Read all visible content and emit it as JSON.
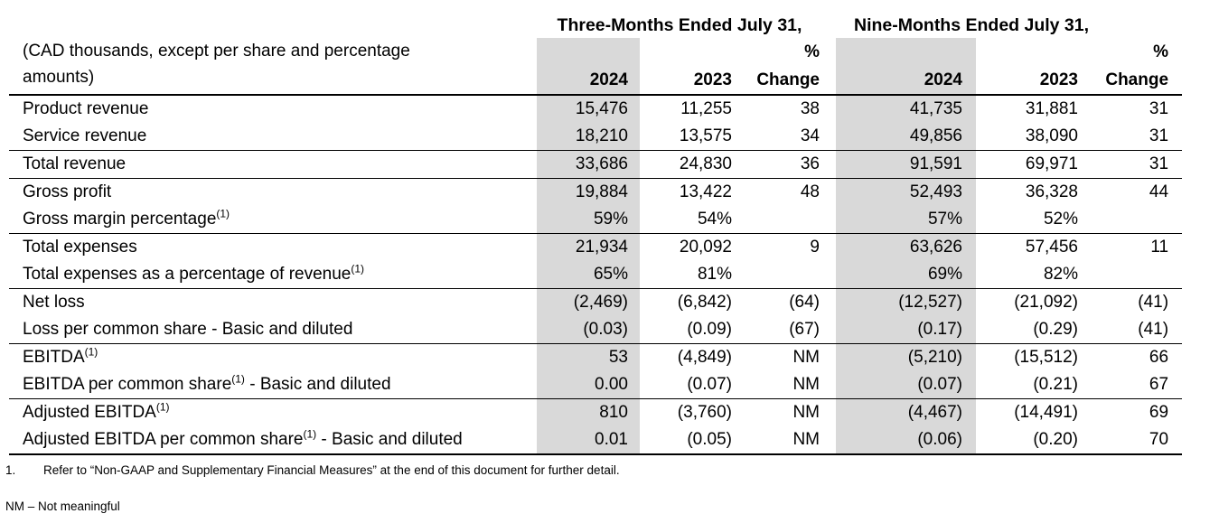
{
  "table": {
    "shade_color": "#d9d9d9",
    "group_headers": [
      "Three-Months Ended July 31,",
      "Nine-Months Ended July 31,"
    ],
    "caption_line1": "(CAD thousands, except per share and percentage",
    "caption_line2": "amounts)",
    "pct_label": "%",
    "col_headers": [
      "2024",
      "2023",
      "Change"
    ],
    "rows": [
      {
        "label": "Product revenue",
        "sup": "",
        "suffix": "",
        "values": [
          "15,476",
          "11,255",
          "38",
          "41,735",
          "31,881",
          "31"
        ],
        "border": "none"
      },
      {
        "label": "Service revenue",
        "sup": "",
        "suffix": "",
        "values": [
          "18,210",
          "13,575",
          "34",
          "49,856",
          "38,090",
          "31"
        ],
        "border": "thin"
      },
      {
        "label": "Total revenue",
        "sup": "",
        "suffix": "",
        "values": [
          "33,686",
          "24,830",
          "36",
          "91,591",
          "69,971",
          "31"
        ],
        "border": "thin"
      },
      {
        "label": "Gross profit",
        "sup": "",
        "suffix": "",
        "values": [
          "19,884",
          "13,422",
          "48",
          "52,493",
          "36,328",
          "44"
        ],
        "border": "none"
      },
      {
        "label": "Gross margin percentage",
        "sup": "(1)",
        "suffix": "",
        "values": [
          "59%",
          "54%",
          "",
          "57%",
          "52%",
          ""
        ],
        "border": "thin"
      },
      {
        "label": "Total expenses",
        "sup": "",
        "suffix": "",
        "values": [
          "21,934",
          "20,092",
          "9",
          "63,626",
          "57,456",
          "11"
        ],
        "border": "none"
      },
      {
        "label": "Total expenses as a percentage of revenue",
        "sup": "(1)",
        "suffix": "",
        "values": [
          "65%",
          "81%",
          "",
          "69%",
          "82%",
          ""
        ],
        "border": "thin"
      },
      {
        "label": "Net loss",
        "sup": "",
        "suffix": "",
        "values": [
          "(2,469)",
          "(6,842)",
          "(64)",
          "(12,527)",
          "(21,092)",
          "(41)"
        ],
        "border": "none"
      },
      {
        "label": "Loss per common share - Basic and diluted",
        "sup": "",
        "suffix": "",
        "values": [
          "(0.03)",
          "(0.09)",
          "(67)",
          "(0.17)",
          "(0.29)",
          "(41)"
        ],
        "border": "thin"
      },
      {
        "label": "EBITDA",
        "sup": "(1)",
        "suffix": "",
        "values": [
          "53",
          "(4,849)",
          "NM",
          "(5,210)",
          "(15,512)",
          "66"
        ],
        "border": "none"
      },
      {
        "label": "EBITDA per common share",
        "sup": "(1)",
        "suffix": " - Basic and diluted",
        "values": [
          "0.00",
          "(0.07)",
          "NM",
          "(0.07)",
          "(0.21)",
          "67"
        ],
        "border": "thin"
      },
      {
        "label": "Adjusted EBITDA",
        "sup": "(1)",
        "suffix": "",
        "values": [
          "810",
          "(3,760)",
          "NM",
          "(4,467)",
          "(14,491)",
          "69"
        ],
        "border": "none"
      },
      {
        "label": "Adjusted EBITDA per common share",
        "sup": "(1)",
        "suffix": " - Basic and diluted",
        "values": [
          "0.01",
          "(0.05)",
          "NM",
          "(0.06)",
          "(0.20)",
          "70"
        ],
        "border": "thick"
      }
    ]
  },
  "footnotes": {
    "item_number": "1.",
    "item_text": "Refer to “Non-GAAP and Supplementary Financial Measures” at the end of this document for further detail.",
    "nm_note": "NM – Not meaningful"
  }
}
